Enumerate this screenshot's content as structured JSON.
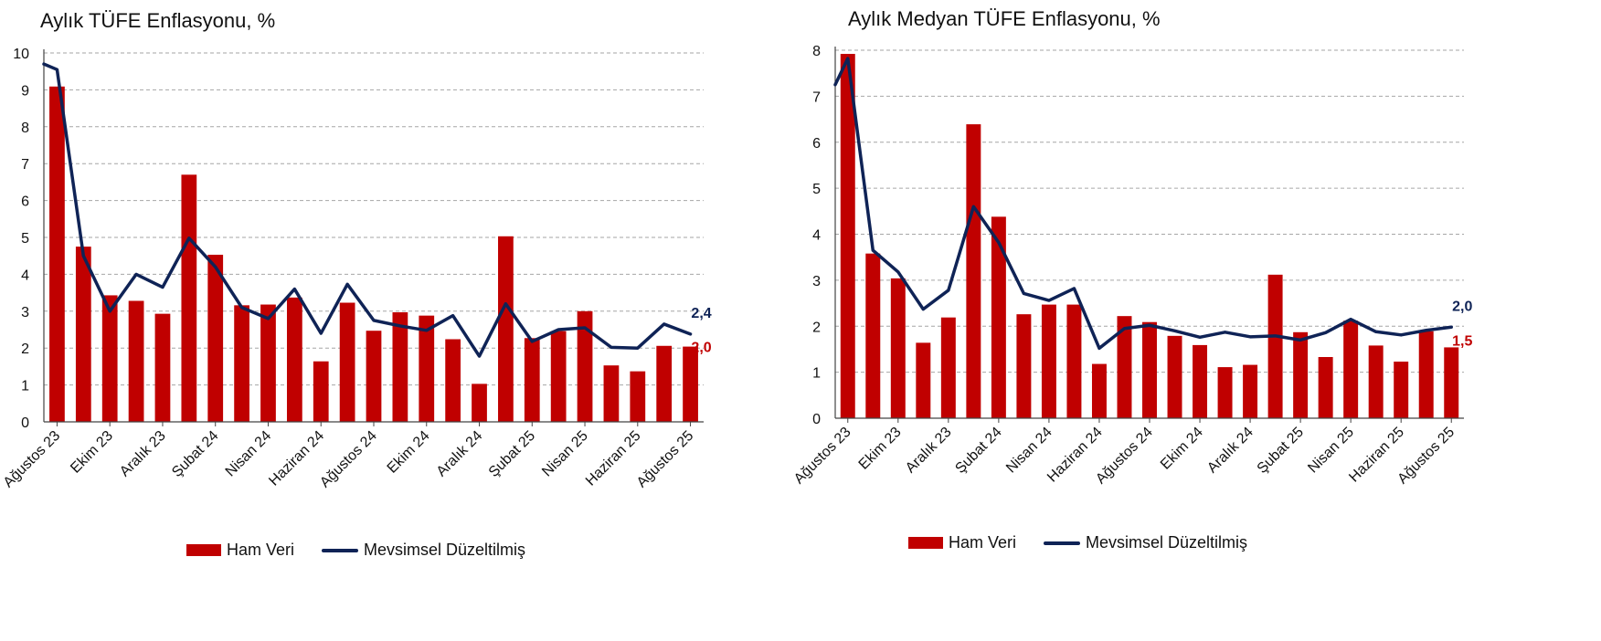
{
  "colors": {
    "bar": "#c00000",
    "line": "#0f2356",
    "grid": "#a6a6a6",
    "bar_label": "#c00000",
    "line_label": "#0f2356"
  },
  "legend": {
    "bar_label": "Ham Veri",
    "line_label": "Mevsimsel Düzeltilmiş"
  },
  "chart_data": [
    {
      "type": "bar+line",
      "title": "Aylık TÜFE Enflasyonu, %",
      "ylim": [
        0,
        10
      ],
      "yticks": [
        "0",
        "1",
        "2",
        "3",
        "4",
        "5",
        "6",
        "7",
        "8",
        "9",
        "10"
      ],
      "x_tick_labels": [
        "Ağustos 23",
        "Ekim 23",
        "Aralık 23",
        "Şubat 24",
        "Nisan 24",
        "Haziran 24",
        "Ağustos 24",
        "Ekim 24",
        "Aralık 24",
        "Şubat 25",
        "Nisan 25",
        "Haziran 25",
        "Ağustos 25"
      ],
      "series": [
        {
          "name": "Ham Veri",
          "kind": "bar",
          "values": [
            9.09,
            4.75,
            3.43,
            3.28,
            2.93,
            6.7,
            4.53,
            3.16,
            3.18,
            3.37,
            1.64,
            3.23,
            2.47,
            2.97,
            2.88,
            2.24,
            1.03,
            5.03,
            2.27,
            2.46,
            3.0,
            1.53,
            1.37,
            2.06,
            2.04
          ]
        },
        {
          "name": "Mevsimsel Düzeltilmiş",
          "kind": "line",
          "start": 9.7,
          "values": [
            9.55,
            4.5,
            3.0,
            4.0,
            3.65,
            4.98,
            4.2,
            3.1,
            2.8,
            3.6,
            2.4,
            3.73,
            2.75,
            2.6,
            2.48,
            2.88,
            1.78,
            3.2,
            2.18,
            2.5,
            2.55,
            2.02,
            2.0,
            2.65,
            2.38
          ]
        }
      ],
      "end_labels": {
        "line": "2,4",
        "bar": "2,0"
      }
    },
    {
      "type": "bar+line",
      "title": "Aylık Medyan TÜFE Enflasyonu, %",
      "ylim": [
        0,
        8
      ],
      "yticks": [
        "0",
        "1",
        "2",
        "3",
        "4",
        "5",
        "6",
        "7",
        "8"
      ],
      "x_tick_labels": [
        "Ağustos 23",
        "Ekim 23",
        "Aralık 23",
        "Şubat 24",
        "Nisan 24",
        "Haziran 24",
        "Ağustos 24",
        "Ekim 24",
        "Aralık 24",
        "Şubat 25",
        "Nisan 25",
        "Haziran 25",
        "Ağustos 25"
      ],
      "series": [
        {
          "name": "Ham Veri",
          "kind": "bar",
          "values": [
            7.92,
            3.58,
            3.04,
            1.64,
            2.19,
            6.39,
            4.38,
            2.26,
            2.47,
            2.47,
            1.18,
            2.22,
            2.09,
            1.79,
            1.59,
            1.11,
            1.16,
            3.12,
            1.87,
            1.33,
            2.12,
            1.58,
            1.23,
            1.89,
            1.54
          ]
        },
        {
          "name": "Mevsimsel Düzeltilmiş",
          "kind": "line",
          "start": 7.25,
          "values": [
            7.82,
            3.65,
            3.18,
            2.37,
            2.78,
            4.6,
            3.82,
            2.71,
            2.56,
            2.82,
            1.52,
            1.95,
            2.02,
            1.9,
            1.76,
            1.87,
            1.77,
            1.79,
            1.7,
            1.86,
            2.15,
            1.88,
            1.81,
            1.91,
            1.98
          ]
        }
      ],
      "end_labels": {
        "line": "2,0",
        "bar": "1,5"
      }
    }
  ]
}
